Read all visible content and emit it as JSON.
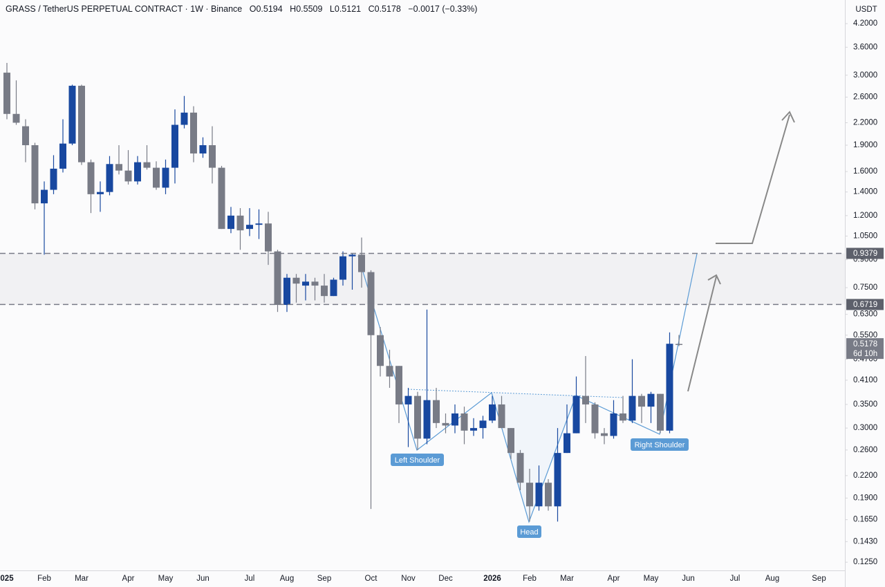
{
  "header": {
    "symbol": "GRASS / TetherUS PERPETUAL CONTRACT · 1W · Binance",
    "ohlc": [
      {
        "label": "O",
        "value": 0.5194
      },
      {
        "label": "H",
        "value": 0.5509
      },
      {
        "label": "L",
        "value": 0.5121
      },
      {
        "label": "C",
        "value": 0.5178
      }
    ],
    "change": "−0.0017 (−0.33%)"
  },
  "chart_data": {
    "type": "candlestick",
    "currency": "USDT",
    "log_scale": true,
    "grid": false,
    "up_color": "#1848a0",
    "down_color": "#787b86",
    "categories": [
      "025",
      null,
      null,
      null,
      "Feb",
      null,
      null,
      null,
      "Mar",
      null,
      null,
      null,
      null,
      "Apr",
      null,
      null,
      null,
      "May",
      null,
      null,
      null,
      "Jun",
      null,
      null,
      null,
      null,
      "Jul",
      null,
      null,
      null,
      "Aug",
      null,
      null,
      null,
      "Sep",
      null,
      null,
      null,
      null,
      "Oct",
      null,
      null,
      null,
      "Nov",
      null,
      null,
      null,
      "Dec",
      null,
      null,
      null,
      null,
      "2026",
      null,
      null,
      null,
      "Feb",
      null,
      null,
      null,
      "Mar",
      null,
      null,
      null,
      null,
      "Apr",
      null,
      null,
      null,
      "May",
      null,
      null,
      null,
      "Jun",
      null,
      null,
      null,
      null,
      "Jul",
      null,
      null,
      null,
      "Aug",
      null,
      null,
      null,
      null,
      "Sep",
      null,
      null
    ],
    "open": [
      3.05,
      2.33,
      2.15,
      1.9,
      1.3,
      1.42,
      1.63,
      1.92,
      2.8,
      1.7,
      1.38,
      1.4,
      1.68,
      1.61,
      1.5,
      1.7,
      1.64,
      1.44,
      1.64,
      2.17,
      2.35,
      1.8,
      1.9,
      1.64,
      1.1,
      1.2,
      1.1,
      1.13,
      1.14,
      0.95,
      0.67,
      0.8,
      0.76,
      0.78,
      0.76,
      0.71,
      0.79,
      0.92,
      0.93,
      0.83,
      0.55,
      0.45,
      0.45,
      0.35,
      0.37,
      0.28,
      0.36,
      0.31,
      0.305,
      0.33,
      0.295,
      0.3,
      0.315,
      0.35,
      0.3,
      0.255,
      0.21,
      0.18,
      0.21,
      0.18,
      0.255,
      0.29,
      0.37,
      0.35,
      0.29,
      0.285,
      0.33,
      0.315,
      0.37,
      0.345,
      0.375,
      0.295,
      0.5194,
      null,
      null,
      null,
      null,
      null,
      null,
      null,
      null,
      null,
      null,
      null,
      null,
      null,
      null,
      null,
      null,
      null
    ],
    "high": [
      3.25,
      2.9,
      2.25,
      1.93,
      1.5,
      1.78,
      2.25,
      2.82,
      2.82,
      1.73,
      1.5,
      1.77,
      1.9,
      1.84,
      1.77,
      1.9,
      1.71,
      1.73,
      2.4,
      2.62,
      2.45,
      2.0,
      2.15,
      1.66,
      1.27,
      1.26,
      1.26,
      1.25,
      1.23,
      0.96,
      0.82,
      0.82,
      0.82,
      0.8,
      0.82,
      0.8,
      0.95,
      0.94,
      1.04,
      0.84,
      0.58,
      0.5,
      0.45,
      0.39,
      0.38,
      0.65,
      0.39,
      0.33,
      0.35,
      0.345,
      0.32,
      0.325,
      0.37,
      0.37,
      0.3,
      0.26,
      0.23,
      0.235,
      0.215,
      0.3,
      0.35,
      0.42,
      0.48,
      0.355,
      0.3,
      0.36,
      0.37,
      0.47,
      0.375,
      0.38,
      0.375,
      0.56,
      0.5509,
      null,
      null,
      null,
      null,
      null,
      null,
      null,
      null,
      null,
      null,
      null,
      null,
      null,
      null,
      null,
      null,
      null
    ],
    "low": [
      2.25,
      2.17,
      1.7,
      1.25,
      0.93,
      1.38,
      1.59,
      1.9,
      1.67,
      1.22,
      1.23,
      1.37,
      1.57,
      1.47,
      1.47,
      1.62,
      1.42,
      1.38,
      1.48,
      2.12,
      1.7,
      1.75,
      1.48,
      1.1,
      1.07,
      0.96,
      1.05,
      1.03,
      0.87,
      0.64,
      0.64,
      0.68,
      0.69,
      0.69,
      0.68,
      0.71,
      0.76,
      0.74,
      0.75,
      0.177,
      0.42,
      0.39,
      0.31,
      0.265,
      0.26,
      0.27,
      0.3,
      0.29,
      0.29,
      0.27,
      0.285,
      0.28,
      0.31,
      0.3,
      0.245,
      0.2,
      0.163,
      0.175,
      0.175,
      0.163,
      0.255,
      0.29,
      0.31,
      0.28,
      0.27,
      0.28,
      0.31,
      0.31,
      0.31,
      0.31,
      0.29,
      0.29,
      0.5121,
      null,
      null,
      null,
      null,
      null,
      null,
      null,
      null,
      null,
      null,
      null,
      null,
      null,
      null,
      null,
      null,
      null
    ],
    "close": [
      2.33,
      2.2,
      1.9,
      1.3,
      1.42,
      1.63,
      1.92,
      2.8,
      1.7,
      1.38,
      1.4,
      1.68,
      1.61,
      1.5,
      1.7,
      1.64,
      1.44,
      1.64,
      2.17,
      2.35,
      1.8,
      1.9,
      1.64,
      1.1,
      1.2,
      1.09,
      1.13,
      1.14,
      0.95,
      0.67,
      0.8,
      0.77,
      0.78,
      0.76,
      0.71,
      0.79,
      0.92,
      0.93,
      0.83,
      0.55,
      0.45,
      0.42,
      0.35,
      0.37,
      0.28,
      0.36,
      0.31,
      0.305,
      0.33,
      0.295,
      0.3,
      0.315,
      0.35,
      0.3,
      0.255,
      0.21,
      0.18,
      0.21,
      0.18,
      0.255,
      0.29,
      0.37,
      0.35,
      0.29,
      0.285,
      0.33,
      0.315,
      0.37,
      0.345,
      0.375,
      0.295,
      0.52,
      0.5178,
      null,
      null,
      null,
      null,
      null,
      null,
      null,
      null,
      null,
      null,
      null,
      null,
      null,
      null,
      null,
      null,
      null
    ],
    "ylim": [
      0.1185,
      4.9
    ],
    "yticks": [
      {
        "value": 4.2,
        "label": "4.2000"
      },
      {
        "value": 3.6,
        "label": "3.6000"
      },
      {
        "value": 3.0,
        "label": "3.0000"
      },
      {
        "value": 2.6,
        "label": "2.6000"
      },
      {
        "value": 2.2,
        "label": "2.2000"
      },
      {
        "value": 1.9,
        "label": "1.9000"
      },
      {
        "value": 1.6,
        "label": "1.6000"
      },
      {
        "value": 1.4,
        "label": "1.4000"
      },
      {
        "value": 1.2,
        "label": "1.2000"
      },
      {
        "value": 1.05,
        "label": "1.0500"
      },
      {
        "value": 0.9,
        "label": "0.9000"
      },
      {
        "value": 0.75,
        "label": "0.7500"
      },
      {
        "value": 0.63,
        "label": "0.6300"
      },
      {
        "value": 0.55,
        "label": "0.5500"
      },
      {
        "value": 0.47,
        "label": "0.4700"
      },
      {
        "value": 0.41,
        "label": "0.4100"
      },
      {
        "value": 0.35,
        "label": "0.3500"
      },
      {
        "value": 0.3,
        "label": "0.3000"
      },
      {
        "value": 0.26,
        "label": "0.2600"
      },
      {
        "value": 0.22,
        "label": "0.2200"
      },
      {
        "value": 0.19,
        "label": "0.1900"
      },
      {
        "value": 0.165,
        "label": "0.1650"
      },
      {
        "value": 0.143,
        "label": "0.1430"
      },
      {
        "value": 0.125,
        "label": "0.1250"
      }
    ],
    "levels": [
      0.9379,
      0.6719
    ],
    "last_price": 0.5178,
    "countdown": "6d 10h",
    "annotations": [
      "Left Shoulder",
      "Head",
      "Right Shoulder"
    ]
  }
}
